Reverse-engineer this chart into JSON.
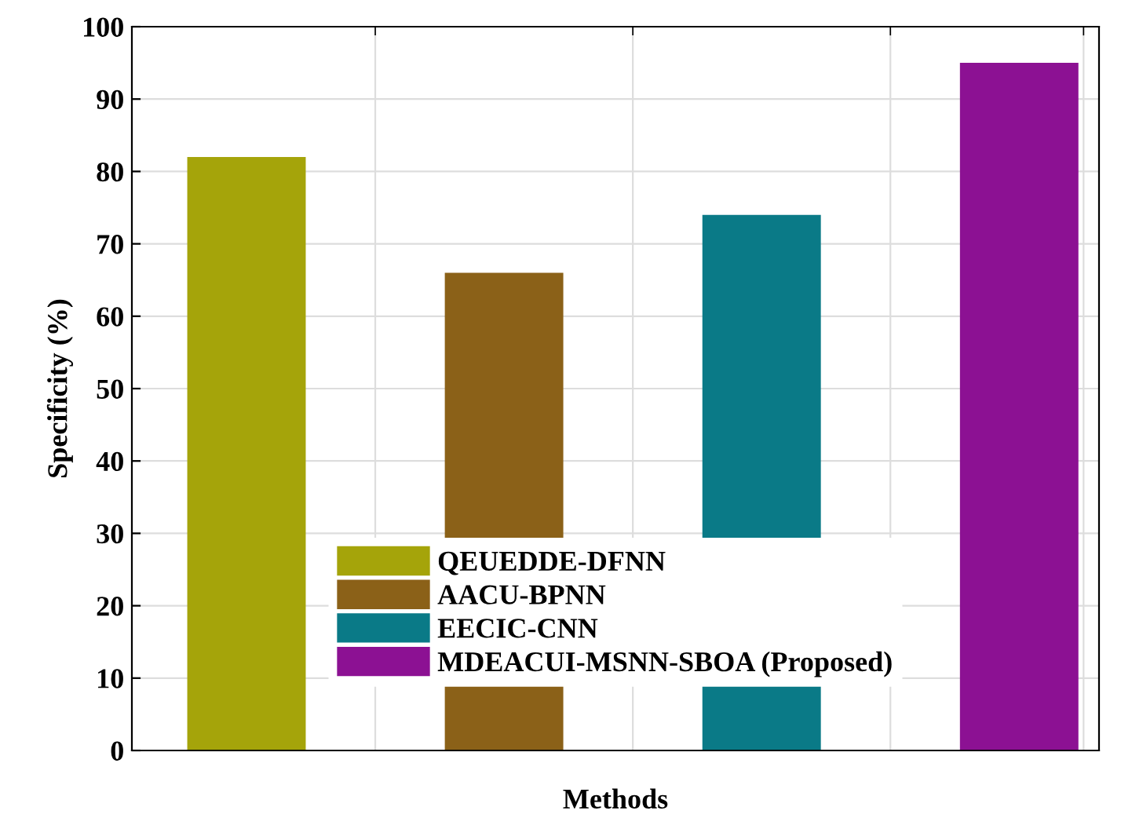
{
  "chart_data": {
    "type": "bar",
    "stacked": true,
    "xlabel": "Methods",
    "ylabel": "Specificity (%)",
    "categories": [
      null,
      null,
      null,
      null
    ],
    "ylim": [
      0,
      100
    ],
    "yticks": [
      0,
      10,
      20,
      30,
      40,
      50,
      60,
      70,
      80,
      90,
      100
    ],
    "grid": true,
    "legend": "bottom",
    "series": [
      {
        "name": "QEUEDDE-DFNN",
        "color": "#a5a40a",
        "values": [
          82,
          null,
          null,
          null
        ]
      },
      {
        "name": "AACU-BPNN",
        "color": "#8b6118",
        "values": [
          null,
          66,
          null,
          null
        ]
      },
      {
        "name": "EECIC-CNN",
        "color": "#0a7a87",
        "values": [
          null,
          null,
          74,
          null
        ]
      },
      {
        "name": "MDEACUI-MSNN-SBOA (Proposed)",
        "color": "#8c1193",
        "values": [
          null,
          null,
          null,
          95
        ]
      }
    ]
  }
}
